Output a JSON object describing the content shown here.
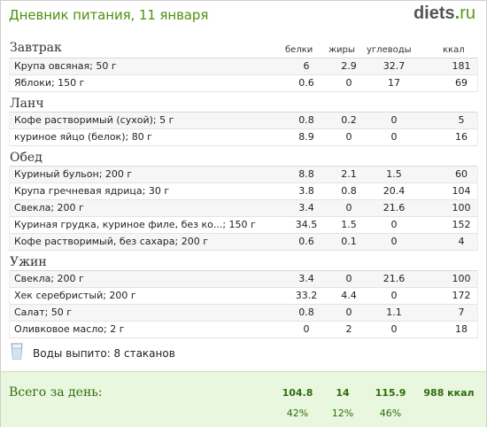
{
  "header": {
    "title": "Дневник питания, 11 января",
    "brand_main": "diets",
    "brand_dot": ".",
    "brand_tld": "ru"
  },
  "columns": {
    "protein": "белки",
    "fat": "жиры",
    "carbs": "углеводы",
    "kcal": "ккал"
  },
  "meals": [
    {
      "title": "Завтрак",
      "show_columns": true,
      "rows": [
        {
          "name": "Крупа овсяная; 50 г",
          "protein": "6",
          "fat": "2.9",
          "carbs": "32.7",
          "kcal": "181"
        },
        {
          "name": "Яблоки; 150 г",
          "protein": "0.6",
          "fat": "0",
          "carbs": "17",
          "kcal": "69"
        }
      ]
    },
    {
      "title": "Ланч",
      "rows": [
        {
          "name": "Кофе растворимый (сухой); 5 г",
          "protein": "0.8",
          "fat": "0.2",
          "carbs": "0",
          "kcal": "5"
        },
        {
          "name": "куриное яйцо (белок); 80 г",
          "protein": "8.9",
          "fat": "0",
          "carbs": "0",
          "kcal": "16"
        }
      ]
    },
    {
      "title": "Обед",
      "rows": [
        {
          "name": "Куриный бульон; 200 г",
          "protein": "8.8",
          "fat": "2.1",
          "carbs": "1.5",
          "kcal": "60"
        },
        {
          "name": "Крупа гречневая ядрица; 30 г",
          "protein": "3.8",
          "fat": "0.8",
          "carbs": "20.4",
          "kcal": "104"
        },
        {
          "name": "Свекла; 200 г",
          "protein": "3.4",
          "fat": "0",
          "carbs": "21.6",
          "kcal": "100"
        },
        {
          "name": "Куриная грудка, куриное филе, без ко...; 150 г",
          "protein": "34.5",
          "fat": "1.5",
          "carbs": "0",
          "kcal": "152"
        },
        {
          "name": "Кофе растворимый, без сахара; 200 г",
          "protein": "0.6",
          "fat": "0.1",
          "carbs": "0",
          "kcal": "4"
        }
      ]
    },
    {
      "title": "Ужин",
      "rows": [
        {
          "name": "Свекла; 200 г",
          "protein": "3.4",
          "fat": "0",
          "carbs": "21.6",
          "kcal": "100"
        },
        {
          "name": "Хек серебристый; 200 г",
          "protein": "33.2",
          "fat": "4.4",
          "carbs": "0",
          "kcal": "172"
        },
        {
          "name": "Салат; 50 г",
          "protein": "0.8",
          "fat": "0",
          "carbs": "1.1",
          "kcal": "7"
        },
        {
          "name": "Оливковое масло; 2 г",
          "protein": "0",
          "fat": "2",
          "carbs": "0",
          "kcal": "18"
        }
      ]
    }
  ],
  "water": {
    "text": "Воды выпито: 8 стаканов",
    "icon": "water-glass-icon"
  },
  "total": {
    "label": "Всего за день:",
    "protein": "104.8",
    "fat": "14",
    "carbs": "115.9",
    "kcal": "988 ккал",
    "protein_pct": "42%",
    "fat_pct": "12%",
    "carbs_pct": "46%"
  },
  "colors": {
    "title_green": "#4f8f10",
    "total_bg": "#e9f7de",
    "total_text": "#2e6e0e"
  }
}
